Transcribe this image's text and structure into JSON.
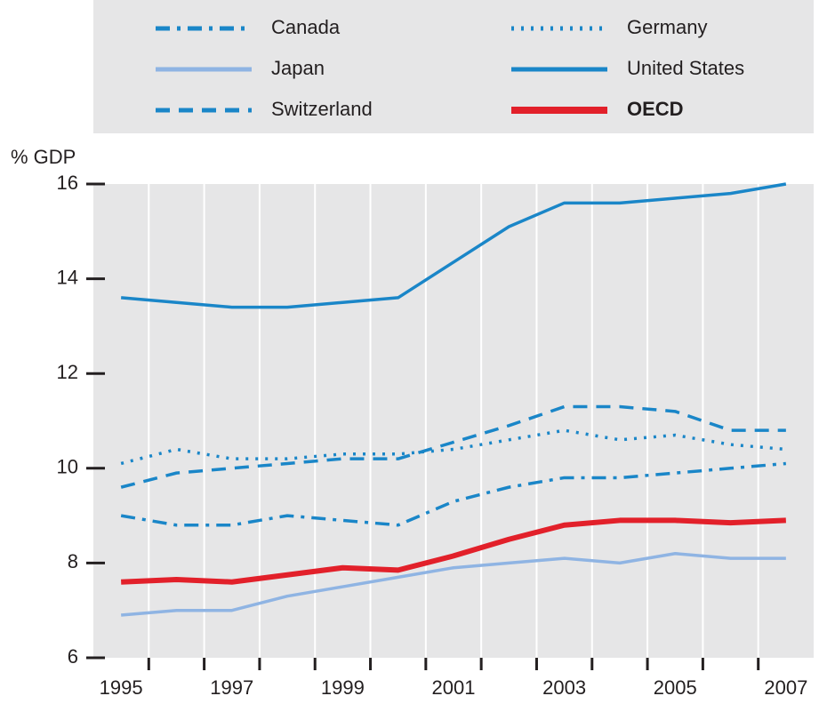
{
  "chart_data": {
    "type": "line",
    "y_label": "% GDP",
    "categories": [
      "1995",
      null,
      "1997",
      null,
      "1999",
      null,
      "2001",
      null,
      "2003",
      null,
      "2005",
      null,
      "2007"
    ],
    "ylim": [
      6,
      16
    ],
    "yticks": [
      6,
      8,
      10,
      12,
      14,
      16
    ],
    "series": [
      {
        "name": "Canada",
        "color": "#1a86c8",
        "dash": "dashdot",
        "values": [
          9.0,
          8.8,
          8.8,
          9.0,
          8.9,
          8.8,
          9.3,
          9.6,
          9.8,
          9.8,
          9.9,
          10.0,
          10.1
        ]
      },
      {
        "name": "Japan",
        "color": "#8fb4e3",
        "dash": "solid",
        "values": [
          6.9,
          7.0,
          7.0,
          7.3,
          7.5,
          7.7,
          7.9,
          8.0,
          8.1,
          8.0,
          8.2,
          8.1,
          8.1
        ]
      },
      {
        "name": "Switzerland",
        "color": "#1a86c8",
        "dash": "dashed",
        "values": [
          9.6,
          9.9,
          10.0,
          10.1,
          10.2,
          10.2,
          10.55,
          10.9,
          11.3,
          11.3,
          11.2,
          10.8,
          10.8
        ]
      },
      {
        "name": "Germany",
        "color": "#1a86c8",
        "dash": "dotted",
        "values": [
          10.1,
          10.4,
          10.2,
          10.2,
          10.3,
          10.3,
          10.4,
          10.6,
          10.8,
          10.6,
          10.7,
          10.5,
          10.4
        ]
      },
      {
        "name": "United States",
        "color": "#1a86c8",
        "dash": "solid",
        "values": [
          13.6,
          13.5,
          13.4,
          13.4,
          13.5,
          13.6,
          14.35,
          15.1,
          15.6,
          15.6,
          15.7,
          15.8,
          16.0
        ]
      },
      {
        "name": "OECD",
        "color": "#e2202a",
        "dash": "solid",
        "bold": true,
        "values": [
          7.6,
          7.65,
          7.6,
          7.75,
          7.9,
          7.85,
          8.15,
          8.5,
          8.8,
          8.9,
          8.9,
          8.85,
          8.9
        ]
      }
    ]
  }
}
